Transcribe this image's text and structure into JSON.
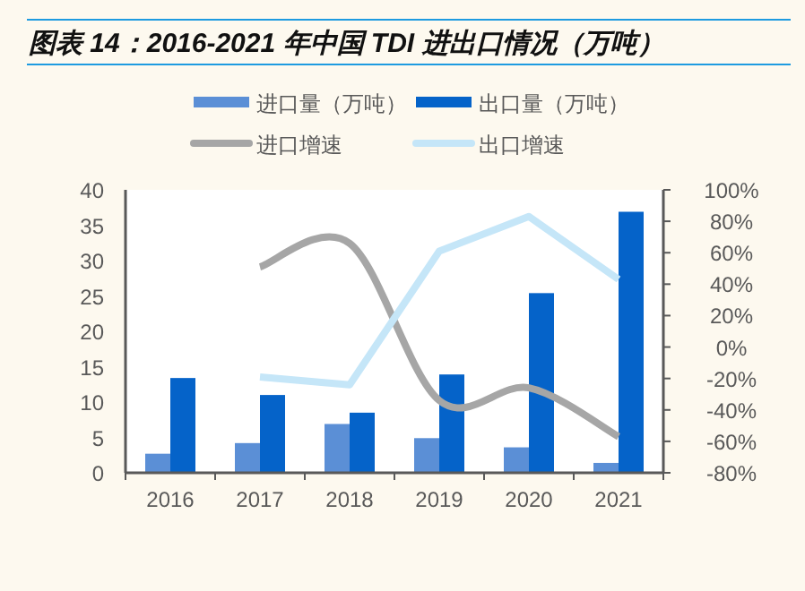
{
  "chart_data": {
    "type": "bar",
    "title": "图表 14：2016-2021 年中国 TDI 进出口情况（万吨）",
    "categories": [
      "2016",
      "2017",
      "2018",
      "2019",
      "2020",
      "2021"
    ],
    "series": [
      {
        "name": "进口量（万吨）",
        "color": "#5b8fd6",
        "values": [
          2.7,
          4.2,
          6.9,
          4.9,
          3.6,
          1.4
        ]
      },
      {
        "name": "出口量（万吨）",
        "color": "#0563c9",
        "values": [
          13.4,
          11.0,
          8.5,
          13.9,
          25.4,
          36.9
        ]
      },
      {
        "name": "进口增速",
        "type": "line",
        "axis": "y2",
        "color": "#a6a6a6",
        "values": [
          null,
          51,
          66,
          -34,
          -26,
          -57
        ]
      },
      {
        "name": "出口增速",
        "type": "line",
        "axis": "y2",
        "color": "#c5e6f8",
        "values": [
          null,
          -19,
          -24,
          61,
          83,
          43
        ]
      }
    ],
    "ylim": [
      0,
      40
    ],
    "yticks": [
      0,
      5,
      10,
      15,
      20,
      25,
      30,
      35,
      40
    ],
    "y2lim": [
      -80,
      100
    ],
    "y2ticks": [
      {
        "value": -80,
        "label": "-80%"
      },
      {
        "value": -60,
        "label": "-60%"
      },
      {
        "value": -40,
        "label": "-40%"
      },
      {
        "value": -20,
        "label": "-20%"
      },
      {
        "value": 0,
        "label": "0%"
      },
      {
        "value": 20,
        "label": "20%"
      },
      {
        "value": 40,
        "label": "40%"
      },
      {
        "value": 60,
        "label": "60%"
      },
      {
        "value": 80,
        "label": "80%"
      },
      {
        "value": 100,
        "label": "100%"
      }
    ],
    "legend": "top",
    "grid": false
  }
}
